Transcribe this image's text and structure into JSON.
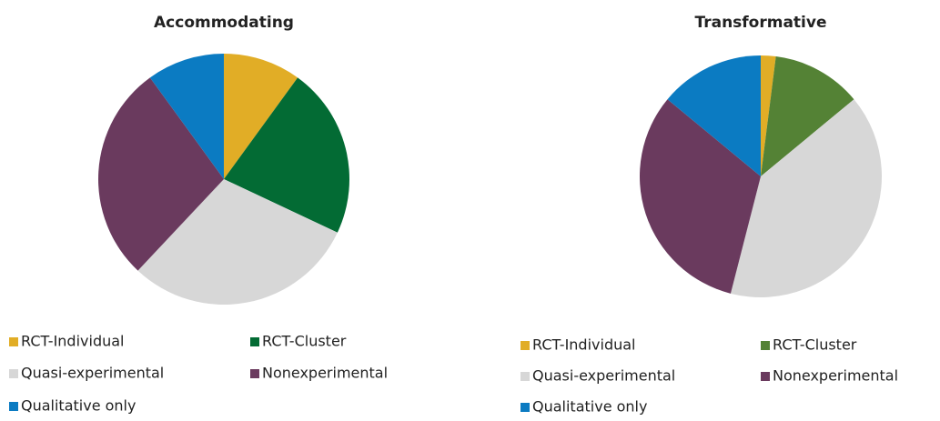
{
  "chart_data": [
    {
      "type": "pie",
      "title": "Accommodating",
      "categories": [
        "RCT-Individual",
        "RCT-Cluster",
        "Quasi-experimental",
        "Nonexperimental",
        "Qualitative only"
      ],
      "values": [
        10,
        22,
        30,
        28,
        10
      ],
      "colors": [
        "#e1ad26",
        "#036b34",
        "#d7d7d7",
        "#6a3a5e",
        "#0b7bc2"
      ]
    },
    {
      "type": "pie",
      "title": "Transformative",
      "categories": [
        "RCT-Individual",
        "RCT-Cluster",
        "Quasi-experimental",
        "Nonexperimental",
        "Qualitative only"
      ],
      "values": [
        2,
        12,
        40,
        32,
        14
      ],
      "colors": [
        "#e1ad26",
        "#548235",
        "#d7d7d7",
        "#6a3a5e",
        "#0b7bc2"
      ]
    }
  ]
}
